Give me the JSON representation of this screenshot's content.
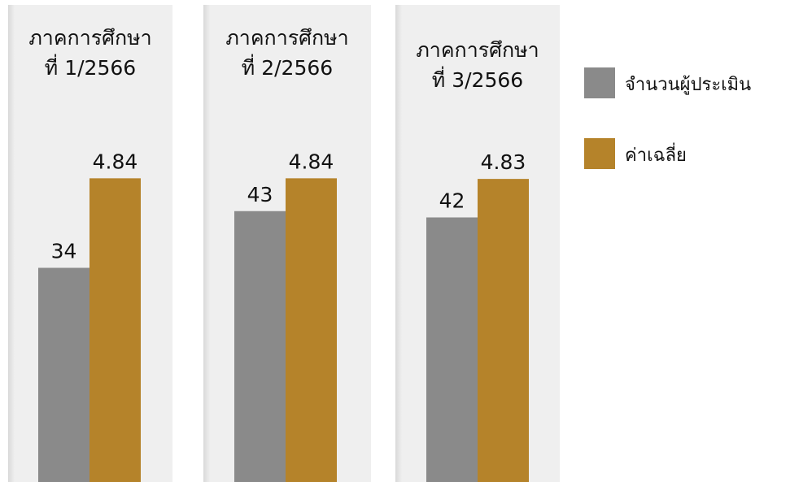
{
  "chart_data": {
    "type": "bar",
    "categories": [
      "ภาคการศึกษา ที่ 1/2566",
      "ภาคการศึกษา ที่ 2/2566",
      "ภาคการศึกษา ที่ 3/2566"
    ],
    "category_lines": [
      [
        "ภาคการศึกษา",
        "ที่ 1/2566"
      ],
      [
        "ภาคการศึกษา",
        "ที่ 2/2566"
      ],
      [
        "ภาคการศึกษา",
        "ที่ 3/2566"
      ]
    ],
    "series": [
      {
        "name": "จำนวนผู้ประเมิน",
        "values": [
          34,
          43,
          42
        ],
        "labels": [
          "34",
          "43",
          "42"
        ],
        "color": "#8a8a8a"
      },
      {
        "name": "ค่าเฉลี่ย",
        "values": [
          4.84,
          4.84,
          4.83
        ],
        "labels": [
          "4.84",
          "4.84",
          "4.83"
        ],
        "color": "#b5832a"
      }
    ],
    "legend": "right",
    "grid": false,
    "panel_background": "#efefef"
  }
}
